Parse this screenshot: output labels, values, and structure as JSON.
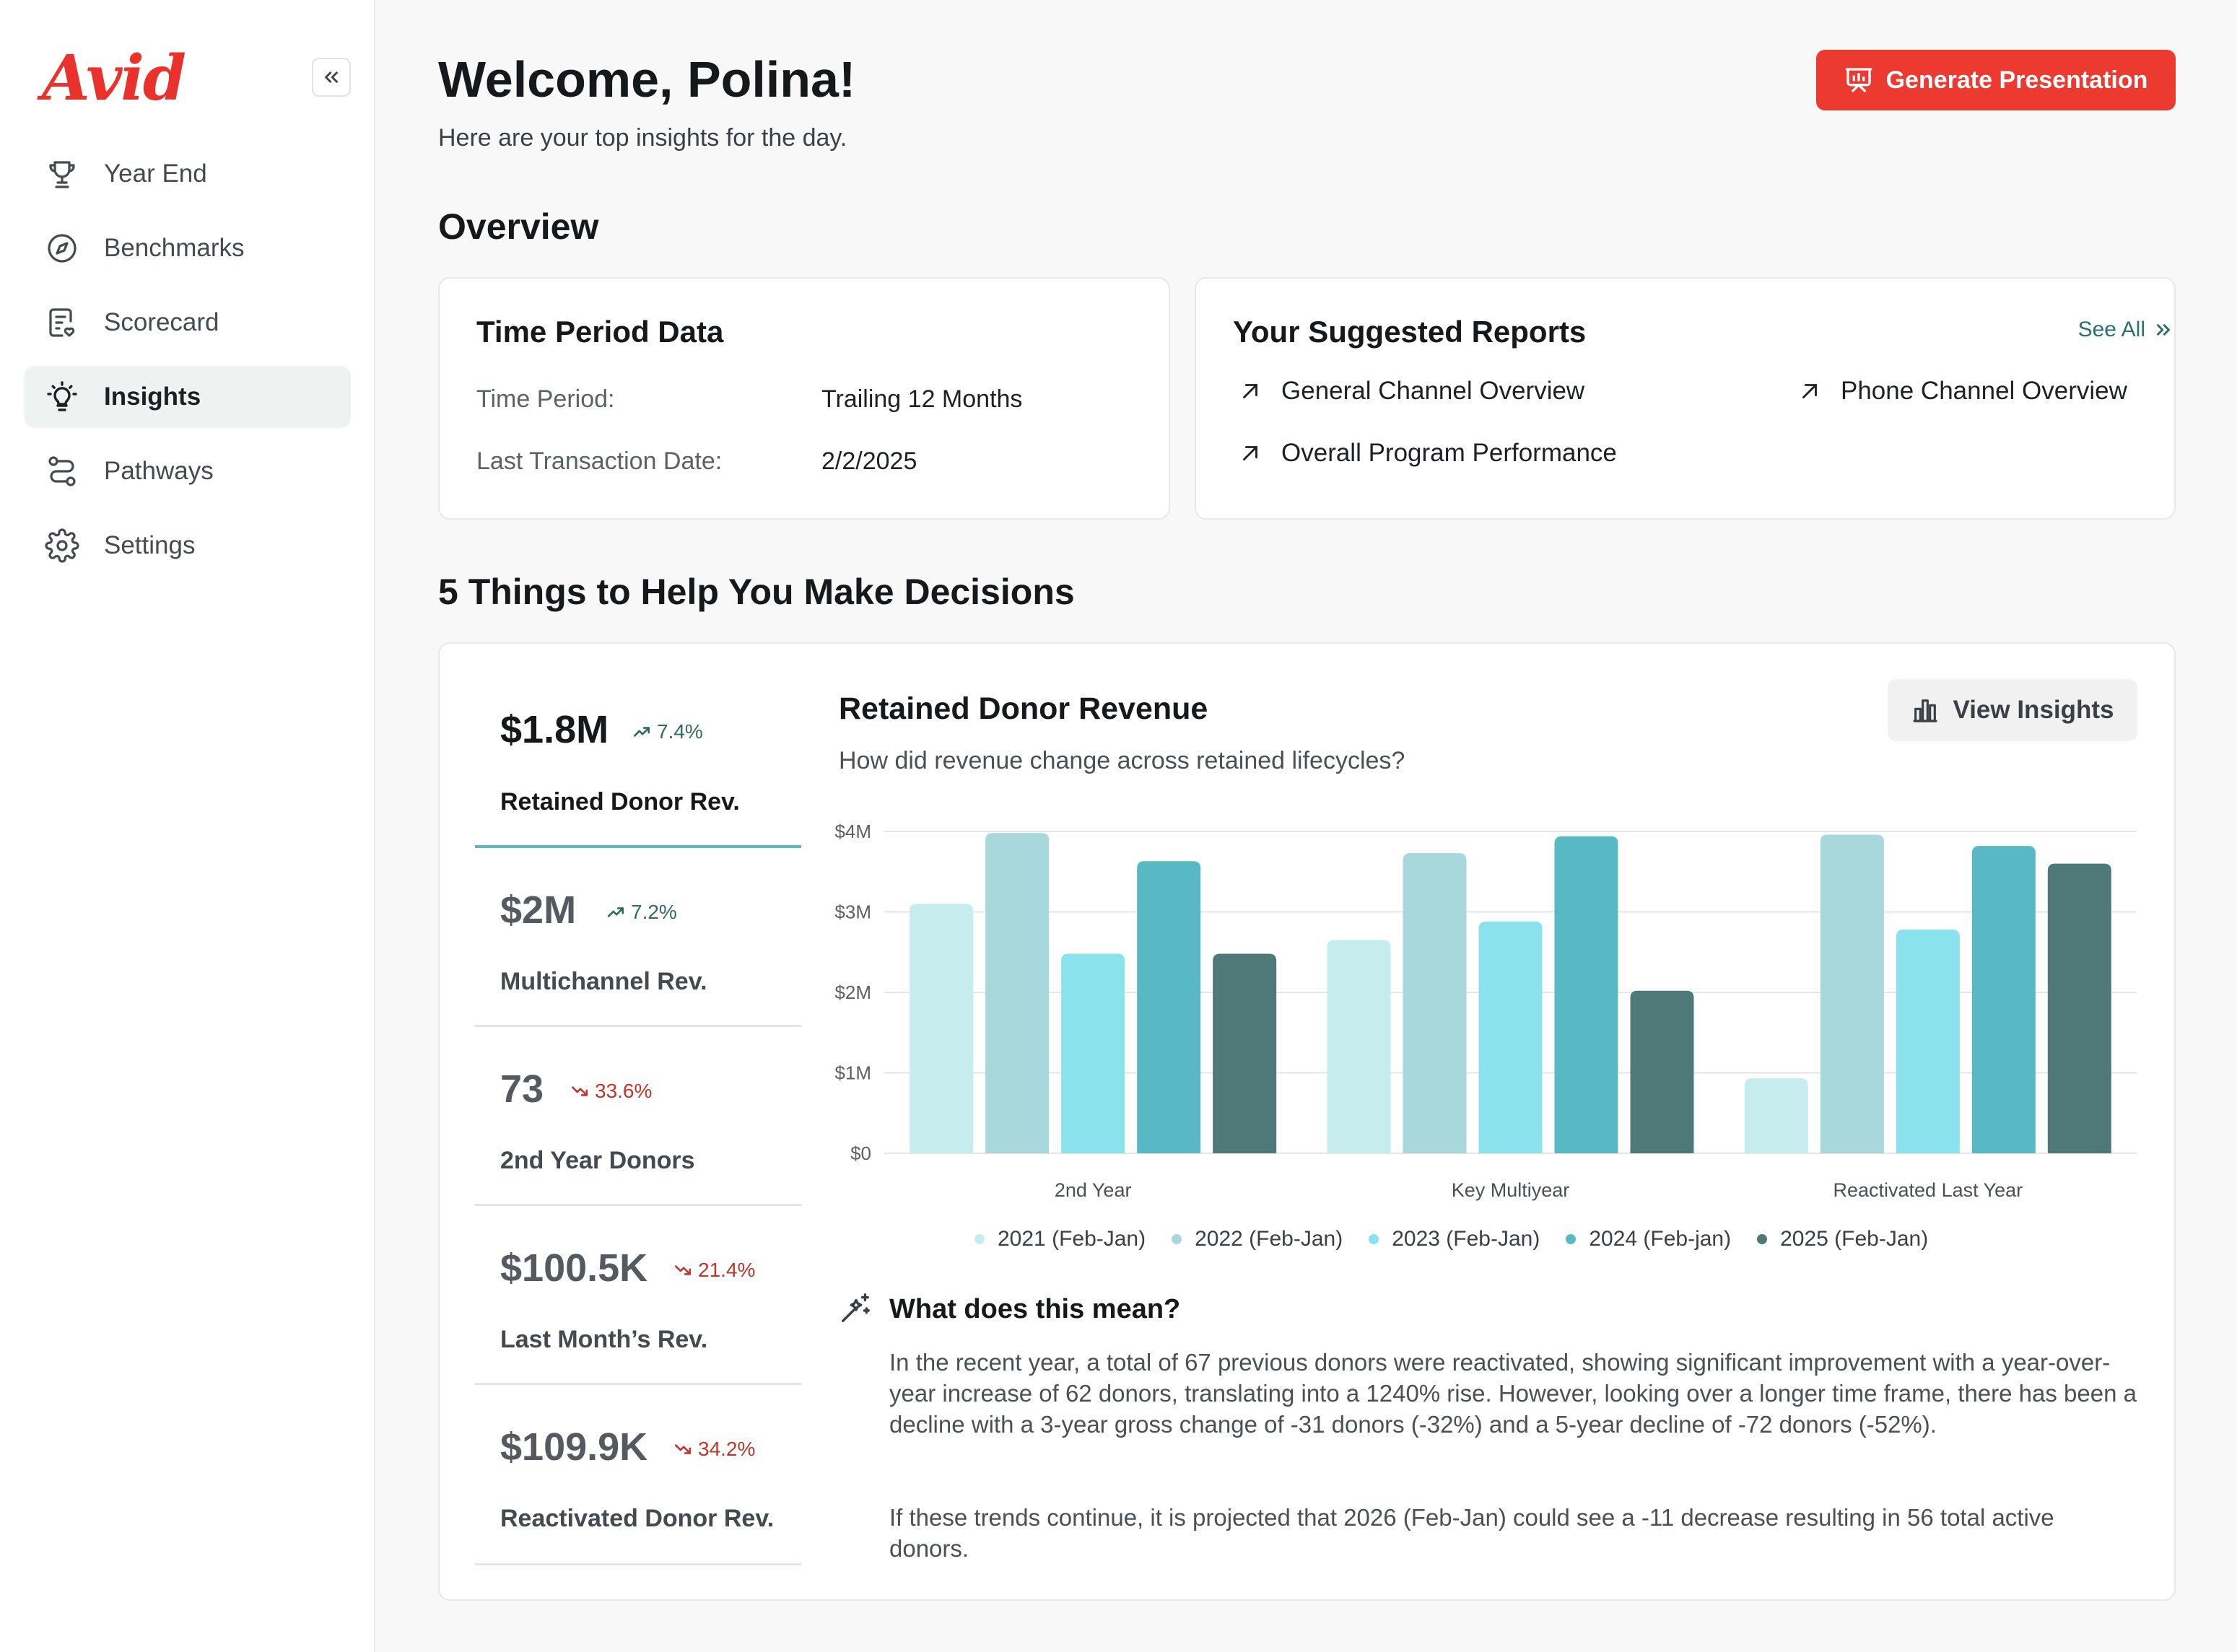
{
  "app": {
    "logo": "Avid"
  },
  "sidebar": {
    "items": [
      {
        "label": "Year End",
        "icon": "trophy-icon",
        "active": false
      },
      {
        "label": "Benchmarks",
        "icon": "compass-icon",
        "active": false
      },
      {
        "label": "Scorecard",
        "icon": "scorecard-icon",
        "active": false
      },
      {
        "label": "Insights",
        "icon": "lightbulb-icon",
        "active": true
      },
      {
        "label": "Pathways",
        "icon": "pathways-icon",
        "active": false
      },
      {
        "label": "Settings",
        "icon": "gear-icon",
        "active": false
      }
    ]
  },
  "header": {
    "welcome": "Welcome, Polina!",
    "subtitle": "Here are your top insights for the day.",
    "generate_button": "Generate Presentation"
  },
  "overview": {
    "heading": "Overview",
    "time_period": {
      "title": "Time Period Data",
      "rows": [
        {
          "label": "Time Period:",
          "value": "Trailing 12 Months"
        },
        {
          "label": "Last Transaction Date:",
          "value": "2/2/2025"
        }
      ]
    },
    "reports": {
      "title": "Your Suggested Reports",
      "see_all": "See All",
      "items": [
        "General Channel Overview",
        "Phone Channel Overview",
        "Overall Program Performance"
      ]
    }
  },
  "decisions": {
    "heading": "5 Things to Help You Make Decisions",
    "metrics": [
      {
        "value": "$1.8M",
        "change": "7.4%",
        "direction": "up",
        "name": "Retained Donor Rev.",
        "active": true
      },
      {
        "value": "$2M",
        "change": "7.2%",
        "direction": "up",
        "name": "Multichannel Rev.",
        "active": false
      },
      {
        "value": "73",
        "change": "33.6%",
        "direction": "down",
        "name": "2nd Year Donors",
        "active": false
      },
      {
        "value": "$100.5K",
        "change": "21.4%",
        "direction": "down",
        "name": "Last Month’s Rev.",
        "active": false
      },
      {
        "value": "$109.9K",
        "change": "34.2%",
        "direction": "down",
        "name": "Reactivated Donor Rev.",
        "active": false
      }
    ],
    "chart_title": "Retained Donor Revenue",
    "chart_subtitle": "How did revenue change across retained lifecycles?",
    "view_insights": "View Insights",
    "meaning": {
      "heading": "What does this mean?",
      "p1": "In the recent year, a total of 67 previous donors were reactivated, showing significant improvement with a year-over-year increase of 62 donors, translating into a 1240% rise. However, looking over a longer time frame, there has been a decline with a 3-year gross change of -31 donors (-32%) and a 5-year decline of -72 donors (-52%).",
      "p2": "If these trends continue, it is projected that 2026 (Feb-Jan) could see a -11 decrease resulting in 56 total active donors."
    }
  },
  "colors": {
    "accent": "#ec3a30",
    "series": [
      "#c6ecee",
      "#a8d8dc",
      "#8ae3ec",
      "#58b9c4",
      "#4f7878"
    ]
  },
  "chart_data": {
    "type": "bar",
    "categories": [
      "2nd Year",
      "Key Multiyear",
      "Reactivated Last Year"
    ],
    "series": [
      {
        "name": "2021 (Feb-Jan)",
        "values": [
          3.1,
          2.65,
          0.93
        ]
      },
      {
        "name": "2022 (Feb-Jan)",
        "values": [
          3.98,
          3.73,
          3.96
        ]
      },
      {
        "name": "2023 (Feb-Jan)",
        "values": [
          2.48,
          2.88,
          2.78
        ]
      },
      {
        "name": "2024 (Feb-jan)",
        "values": [
          3.63,
          3.94,
          3.82
        ]
      },
      {
        "name": "2025 (Feb-Jan)",
        "values": [
          2.48,
          2.02,
          3.6
        ]
      }
    ],
    "y_ticks": [
      "$0",
      "$1M",
      "$2M",
      "$3M",
      "$4M"
    ],
    "ylim": [
      0,
      4
    ],
    "ylabel_units": "millions USD",
    "grid": true,
    "legend": "bottom"
  }
}
